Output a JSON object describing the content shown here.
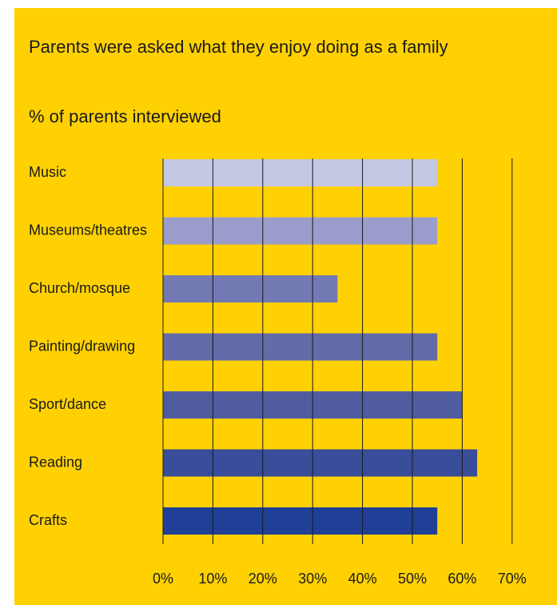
{
  "chart_data": {
    "type": "bar",
    "orientation": "horizontal",
    "title": "Parents were asked what they enjoy doing as a family",
    "subtitle": "% of parents interviewed",
    "categories": [
      "Music",
      "Museums/theatres",
      "Church/mosque",
      "Painting/drawing",
      "Sport/dance",
      "Reading",
      "Crafts"
    ],
    "values": [
      55,
      55,
      35,
      55,
      60,
      63,
      55
    ],
    "xlim": [
      0,
      70
    ],
    "xticks": [
      "0%",
      "10%",
      "20%",
      "30%",
      "40%",
      "50%",
      "60%",
      "70%"
    ],
    "grid": true,
    "background_color": "#ffd102",
    "bar_colors": [
      "#c5c8e2",
      "#9a9dcc",
      "#7379b3",
      "#636ba9",
      "#4f5ca0",
      "#3a4d9a",
      "#1f4096"
    ]
  }
}
